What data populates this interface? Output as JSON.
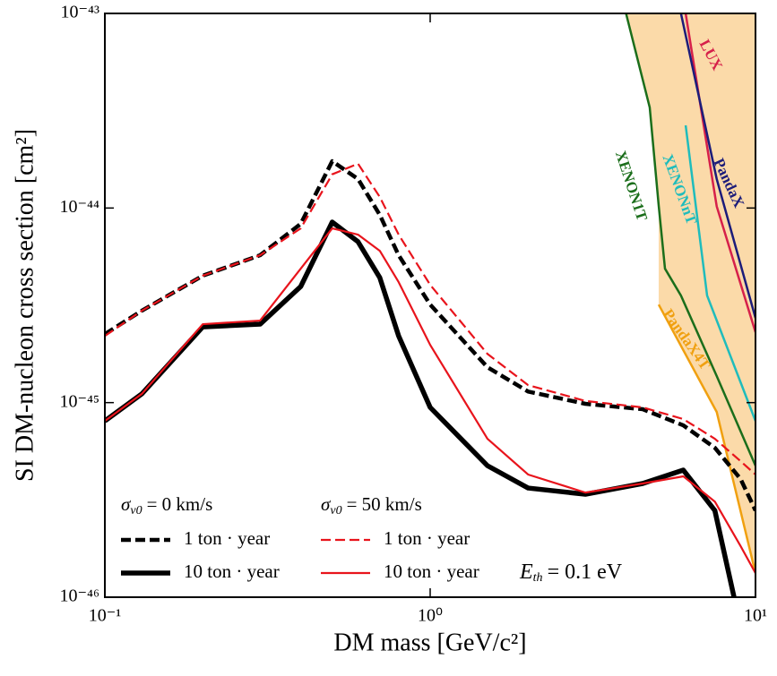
{
  "chart_data": {
    "type": "line",
    "log_x": true,
    "log_y": true,
    "x_label": "DM mass [GeV/c²]",
    "y_label": "SI DM-nucleon cross section [cm²]",
    "xlim": [
      0.1,
      10
    ],
    "ylim": [
      1e-46,
      1e-43
    ],
    "xticks": [
      {
        "value": 0.1,
        "label": "10⁻¹"
      },
      {
        "value": 1,
        "label": "10⁰"
      },
      {
        "value": 10,
        "label": "10¹"
      }
    ],
    "yticks": [
      {
        "value": 1e-46,
        "label": "10⁻⁴⁶"
      },
      {
        "value": 1e-45,
        "label": "10⁻⁴⁵"
      },
      {
        "value": 1e-44,
        "label": "10⁻⁴⁴"
      },
      {
        "value": 1e-43,
        "label": "10⁻⁴³"
      }
    ],
    "x": [
      0.1,
      0.13,
      0.2,
      0.3,
      0.4,
      0.5,
      0.6,
      0.7,
      0.8,
      1,
      1.5,
      2,
      3,
      4.5,
      6,
      7.5,
      9,
      10
    ],
    "legend_groups": [
      {
        "symbol": "σ",
        "subscript": "v0",
        "text": "= 0 km/s"
      },
      {
        "symbol": "σ",
        "subscript": "v0",
        "text": "= 50 km/s"
      }
    ],
    "series": [
      {
        "name": "1 ton · year",
        "group": 0,
        "color": "#000000",
        "dashed": true,
        "width": 4.5,
        "values": [
          2.25e-45,
          2.97e-45,
          4.49e-45,
          5.72e-45,
          8.29e-45,
          1.74e-44,
          1.41e-44,
          9.22e-45,
          5.72e-45,
          3.19e-45,
          1.52e-45,
          1.14e-45,
          9.86e-46,
          9.25e-46,
          7.64e-46,
          5.86e-46,
          4.05e-46,
          2.79e-46
        ]
      },
      {
        "name": "10 ton · year",
        "group": 0,
        "color": "#000000",
        "dashed": false,
        "width": 5.5,
        "values": [
          8.05e-46,
          1.11e-45,
          2.45e-45,
          2.53e-45,
          3.95e-45,
          8.47e-45,
          6.71e-45,
          4.39e-45,
          2.2e-45,
          9.45e-46,
          4.74e-46,
          3.64e-46,
          3.38e-46,
          3.84e-46,
          4.5e-46,
          2.79e-46,
          7.05e-47,
          null
        ]
      },
      {
        "name": "1 ton · year",
        "group": 1,
        "color": "#e8141c",
        "dashed": true,
        "width": 2.2,
        "values": [
          2.2e-45,
          2.97e-45,
          4.49e-45,
          5.72e-45,
          7.86e-45,
          1.49e-44,
          1.69e-44,
          1.14e-44,
          7.3e-45,
          4.03e-45,
          1.78e-45,
          1.23e-45,
          1.02e-45,
          9.45e-46,
          8.23e-46,
          6.52e-46,
          5e-46,
          4.27e-46
        ]
      },
      {
        "name": "10 ton · year",
        "group": 1,
        "color": "#e8141c",
        "dashed": false,
        "width": 2.2,
        "values": [
          8.05e-46,
          1.11e-45,
          2.53e-45,
          2.64e-45,
          4.88e-45,
          7.86e-45,
          7.3e-45,
          6.03e-45,
          4.16e-45,
          1.98e-45,
          6.52e-46,
          4.27e-46,
          3.45e-46,
          3.84e-46,
          4.18e-46,
          3.1e-46,
          1.83e-46,
          1.33e-46
        ]
      }
    ],
    "annotation": {
      "symbol": "E",
      "subscript": "th",
      "text": "= 0.1 eV"
    },
    "exclusion_fill": "#fbdaa9",
    "limits": [
      {
        "name": "LUX",
        "color": "#d6204a",
        "x": [
          6.1,
          7.6,
          10
        ],
        "values": [
          1e-43,
          1.02e-44,
          2.3e-45
        ]
      },
      {
        "name": "PandaX",
        "color": "#1c1c7a",
        "x": [
          5.9,
          7.6,
          10
        ],
        "values": [
          1e-43,
          1.41e-44,
          2.72e-45
        ]
      },
      {
        "name": "XENONnT",
        "color": "#1fbcbc",
        "x": [
          6.1,
          7.1,
          10
        ],
        "values": [
          2.66e-44,
          3.55e-45,
          8.05e-46
        ]
      },
      {
        "name": "XENON1T",
        "color": "#1b6e1b",
        "x": [
          4.0,
          4.73,
          5.04,
          5.27,
          5.9,
          7.6,
          10
        ],
        "values": [
          1e-43,
          3.29e-44,
          1.03e-44,
          4.88e-45,
          3.55e-45,
          1.37e-45,
          4.74e-46
        ]
      },
      {
        "name": "PandaX4T",
        "color": "#f0a010",
        "x": [
          5.04,
          7.6,
          10
        ],
        "values": [
          3.19e-45,
          8.95e-46,
          1.33e-46
        ]
      }
    ]
  }
}
